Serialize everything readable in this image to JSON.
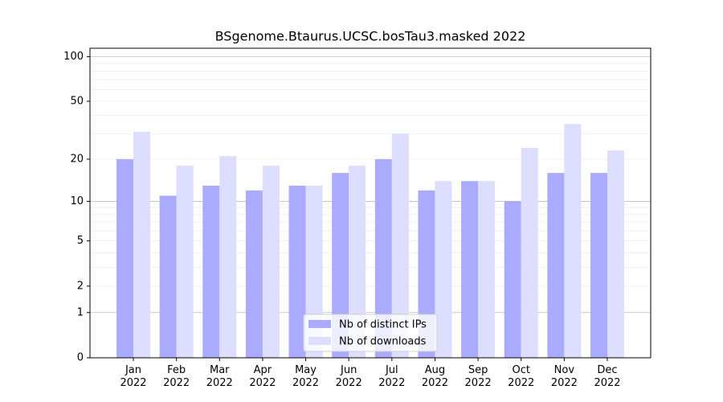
{
  "chart_data": {
    "type": "bar",
    "title": "BSgenome.Btaurus.UCSC.bosTau3.masked 2022",
    "categories": [
      "Jan\n2022",
      "Feb\n2022",
      "Mar\n2022",
      "Apr\n2022",
      "May\n2022",
      "Jun\n2022",
      "Jul\n2022",
      "Aug\n2022",
      "Sep\n2022",
      "Oct\n2022",
      "Nov\n2022",
      "Dec\n2022"
    ],
    "series": [
      {
        "name": "Nb of distinct IPs",
        "color": "#aaaaff",
        "values": [
          20,
          11,
          13,
          12,
          13,
          16,
          20,
          12,
          14,
          10,
          16,
          16
        ]
      },
      {
        "name": "Nb of downloads",
        "color": "#ddddff",
        "values": [
          31,
          18,
          21,
          18,
          13,
          18,
          30,
          14,
          14,
          24,
          35,
          23
        ]
      }
    ],
    "yscale": "log1p",
    "ylim": [
      0,
      114
    ],
    "yticks": [
      0,
      1,
      2,
      5,
      10,
      20,
      50,
      100
    ],
    "major_grid": [
      1,
      10,
      100
    ],
    "minor_grid": [
      2,
      3,
      4,
      5,
      6,
      7,
      8,
      9,
      20,
      30,
      40,
      50,
      60,
      70,
      80,
      90
    ],
    "legend": "lower center"
  }
}
